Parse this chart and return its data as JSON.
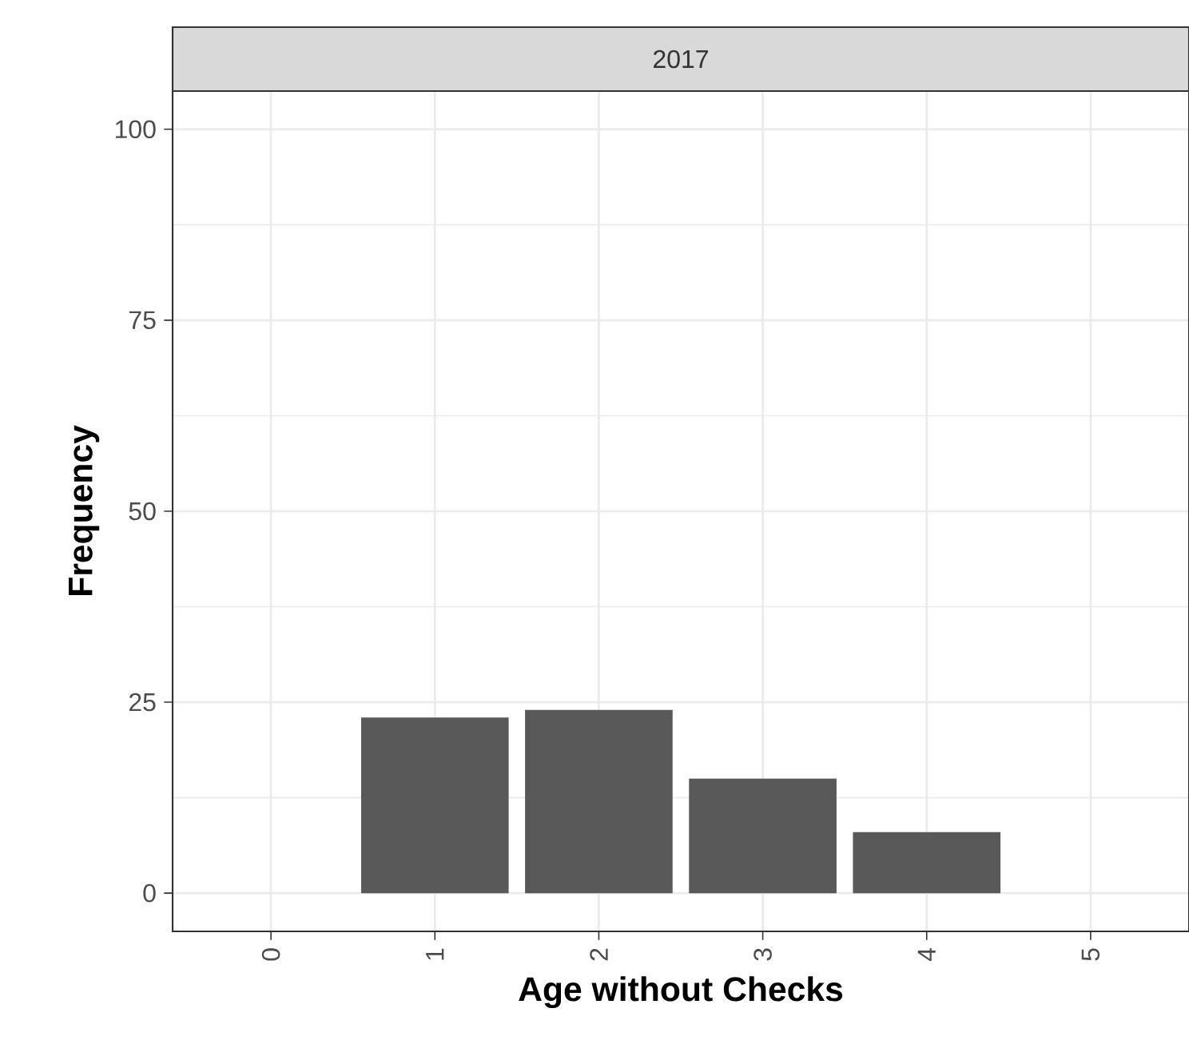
{
  "chart_data": {
    "type": "bar",
    "title": "2017",
    "xlabel": "Age without Checks",
    "ylabel": "Frequency",
    "x": [
      1,
      2,
      3,
      4
    ],
    "values": [
      23,
      24,
      15,
      8
    ],
    "color": "#595959",
    "xlim": [
      -0.6,
      5.6
    ],
    "xticks": [
      0,
      1,
      2,
      3,
      4,
      5
    ],
    "ylim": [
      -5,
      105
    ],
    "yticks": [
      0,
      25,
      50,
      75,
      100
    ],
    "grid": true
  }
}
